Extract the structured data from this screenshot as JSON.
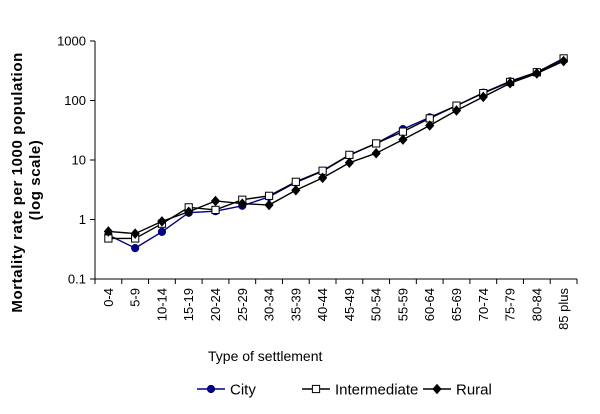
{
  "chart_data": {
    "type": "line",
    "title": "",
    "xlabel": "Type of settlement",
    "ylabel": "Mortality rate per 1000 population (log scale)",
    "yscale": "log",
    "ylim": [
      0.1,
      1000
    ],
    "yticks": [
      "0.1",
      "1",
      "10",
      "100",
      "1000"
    ],
    "grid": false,
    "legend_position": "bottom",
    "categories": [
      "0-4",
      "5-9",
      "10-14",
      "15-19",
      "20-24",
      "25-29",
      "30-34",
      "35-39",
      "40-44",
      "45-49",
      "50-54",
      "55-59",
      "60-64",
      "65-69",
      "70-74",
      "75-79",
      "80-84",
      "85 plus"
    ],
    "series": [
      {
        "name": "City",
        "color": "#000080",
        "marker": "circle",
        "values": [
          0.55,
          0.33,
          0.62,
          1.3,
          1.38,
          1.7,
          2.4,
          4.2,
          6.5,
          12,
          19,
          33,
          52,
          82,
          135,
          210,
          300,
          480
        ]
      },
      {
        "name": "Intermediate",
        "color": "#000000",
        "marker": "square-open",
        "values": [
          0.48,
          0.48,
          0.85,
          1.6,
          1.45,
          2.15,
          2.5,
          4.3,
          6.6,
          12.2,
          19,
          30,
          50,
          82,
          133,
          205,
          298,
          510
        ]
      },
      {
        "name": "Rural",
        "color": "#000000",
        "marker": "diamond",
        "values": [
          0.63,
          0.58,
          0.93,
          1.35,
          2.05,
          1.85,
          1.75,
          3.1,
          5,
          9,
          13,
          22,
          38,
          68,
          115,
          195,
          285,
          460
        ]
      }
    ]
  }
}
